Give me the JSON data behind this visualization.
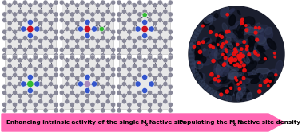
{
  "arrow_color": "#FF69B4",
  "arrow_text_color": "#000000",
  "arrow_fontsize": 5.2,
  "background_color": "#ffffff",
  "carbon_color": "#888899",
  "nitrogen_color": "#3355CC",
  "metal_red": "#CC1122",
  "metal_green": "#33BB33",
  "metal_purple": "#AA88BB",
  "metal_teal": "#229988",
  "bond_color": "#555566",
  "panel_bg": "#e8e8e8",
  "sphere_base": "#1a1e2e",
  "sphere_dark": "#0d1020",
  "red_dot_color": "#EE1111",
  "green_dot_color": "#22BB22"
}
